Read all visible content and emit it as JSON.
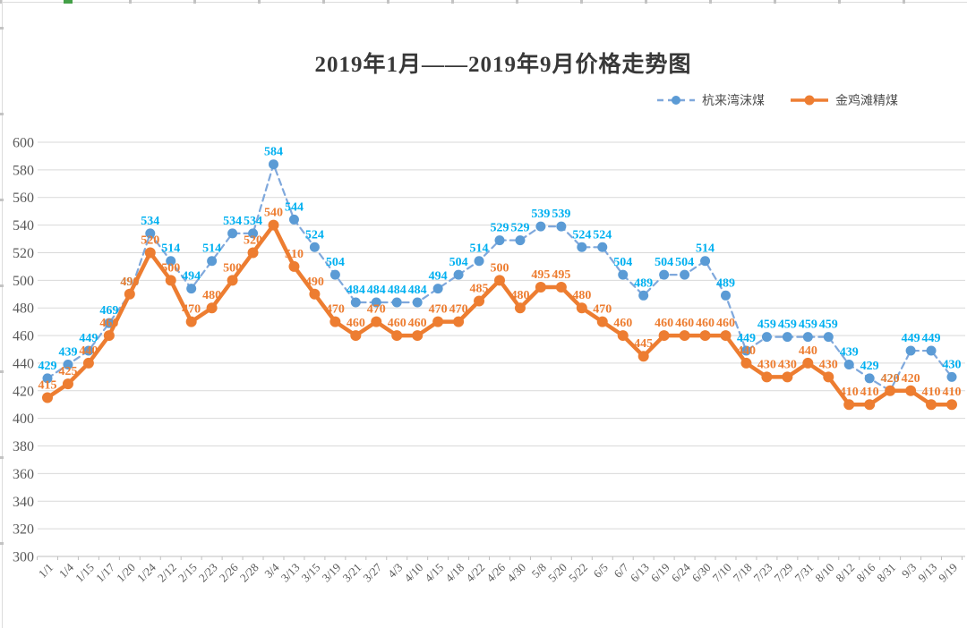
{
  "title": "2019年1月——2019年9月价格走势图",
  "chart_data": {
    "type": "line",
    "title": "2019年1月——2019年9月价格走势图",
    "categories": [
      "1/1",
      "1/4",
      "1/15",
      "1/17",
      "1/20",
      "1/24",
      "2/12",
      "2/15",
      "2/23",
      "2/26",
      "2/28",
      "3/4",
      "3/13",
      "3/15",
      "3/19",
      "3/21",
      "3/27",
      "4/3",
      "4/10",
      "4/15",
      "4/18",
      "4/22",
      "4/26",
      "4/30",
      "5/8",
      "5/20",
      "5/22",
      "6/5",
      "6/7",
      "6/13",
      "6/19",
      "6/24",
      "6/30",
      "7/10",
      "7/18",
      "7/23",
      "7/29",
      "7/31",
      "8/10",
      "8/12",
      "8/16",
      "8/31",
      "9/3",
      "9/13",
      "9/19"
    ],
    "series": [
      {
        "name": "杭来湾沫煤",
        "values": [
          429,
          439,
          449,
          469,
          490,
          534,
          514,
          494,
          514,
          534,
          534,
          584,
          544,
          524,
          504,
          484,
          484,
          484,
          484,
          494,
          504,
          514,
          529,
          529,
          539,
          539,
          524,
          524,
          504,
          489,
          504,
          504,
          514,
          489,
          449,
          459,
          459,
          459,
          459,
          439,
          429,
          420,
          449,
          449,
          430
        ],
        "color": "#5B9BD5",
        "line_color": "#7FA8DC",
        "line_style": "dashed",
        "label_color": "#00B0F0"
      },
      {
        "name": "金鸡滩精煤",
        "values": [
          415,
          425,
          440,
          460,
          490,
          520,
          500,
          470,
          480,
          500,
          520,
          540,
          510,
          490,
          470,
          460,
          470,
          460,
          460,
          470,
          470,
          485,
          500,
          480,
          495,
          495,
          480,
          470,
          460,
          445,
          460,
          460,
          460,
          460,
          440,
          430,
          430,
          440,
          430,
          410,
          410,
          420,
          420,
          410,
          410
        ],
        "color": "#ED7D31",
        "line_color": "#ED7D31",
        "line_style": "solid",
        "label_color": "#ED7D31"
      }
    ],
    "ylim": [
      300,
      600
    ],
    "ytick_step": 20,
    "ytick_labels": [
      "300",
      "320",
      "340",
      "360",
      "380",
      "400",
      "420",
      "440",
      "460",
      "480",
      "500",
      "520",
      "540",
      "560",
      "580",
      "600"
    ],
    "grid": true,
    "legend_position": "top-right",
    "gridline_color": "#D9D9D9",
    "axis_line_color": "#BFBFBF",
    "axis_text_color": "#595959"
  }
}
